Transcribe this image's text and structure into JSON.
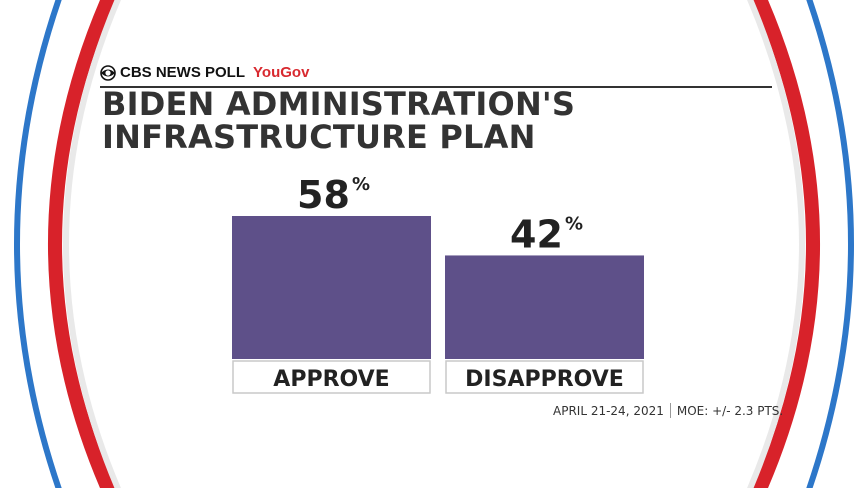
{
  "header": {
    "brand": "CBS NEWS POLL",
    "partner": "YouGov",
    "title": "BIDEN ADMINISTRATION'S INFRASTRUCTURE PLAN"
  },
  "footer": {
    "dates": "APRIL 21-24, 2021",
    "moe": "MOE: +/- 2.3 PTS."
  },
  "colors": {
    "bar": "#5e5089",
    "red_arc": "#d8222a",
    "blue_arc": "#2d77c9",
    "text": "#333333"
  },
  "chart_data": {
    "type": "bar",
    "title": "BIDEN ADMINISTRATION'S INFRASTRUCTURE PLAN",
    "categories": [
      "APPROVE",
      "DISAPPROVE"
    ],
    "values": [
      58,
      42
    ],
    "value_suffix": "%",
    "ylim": [
      0,
      58
    ],
    "grid": false
  }
}
